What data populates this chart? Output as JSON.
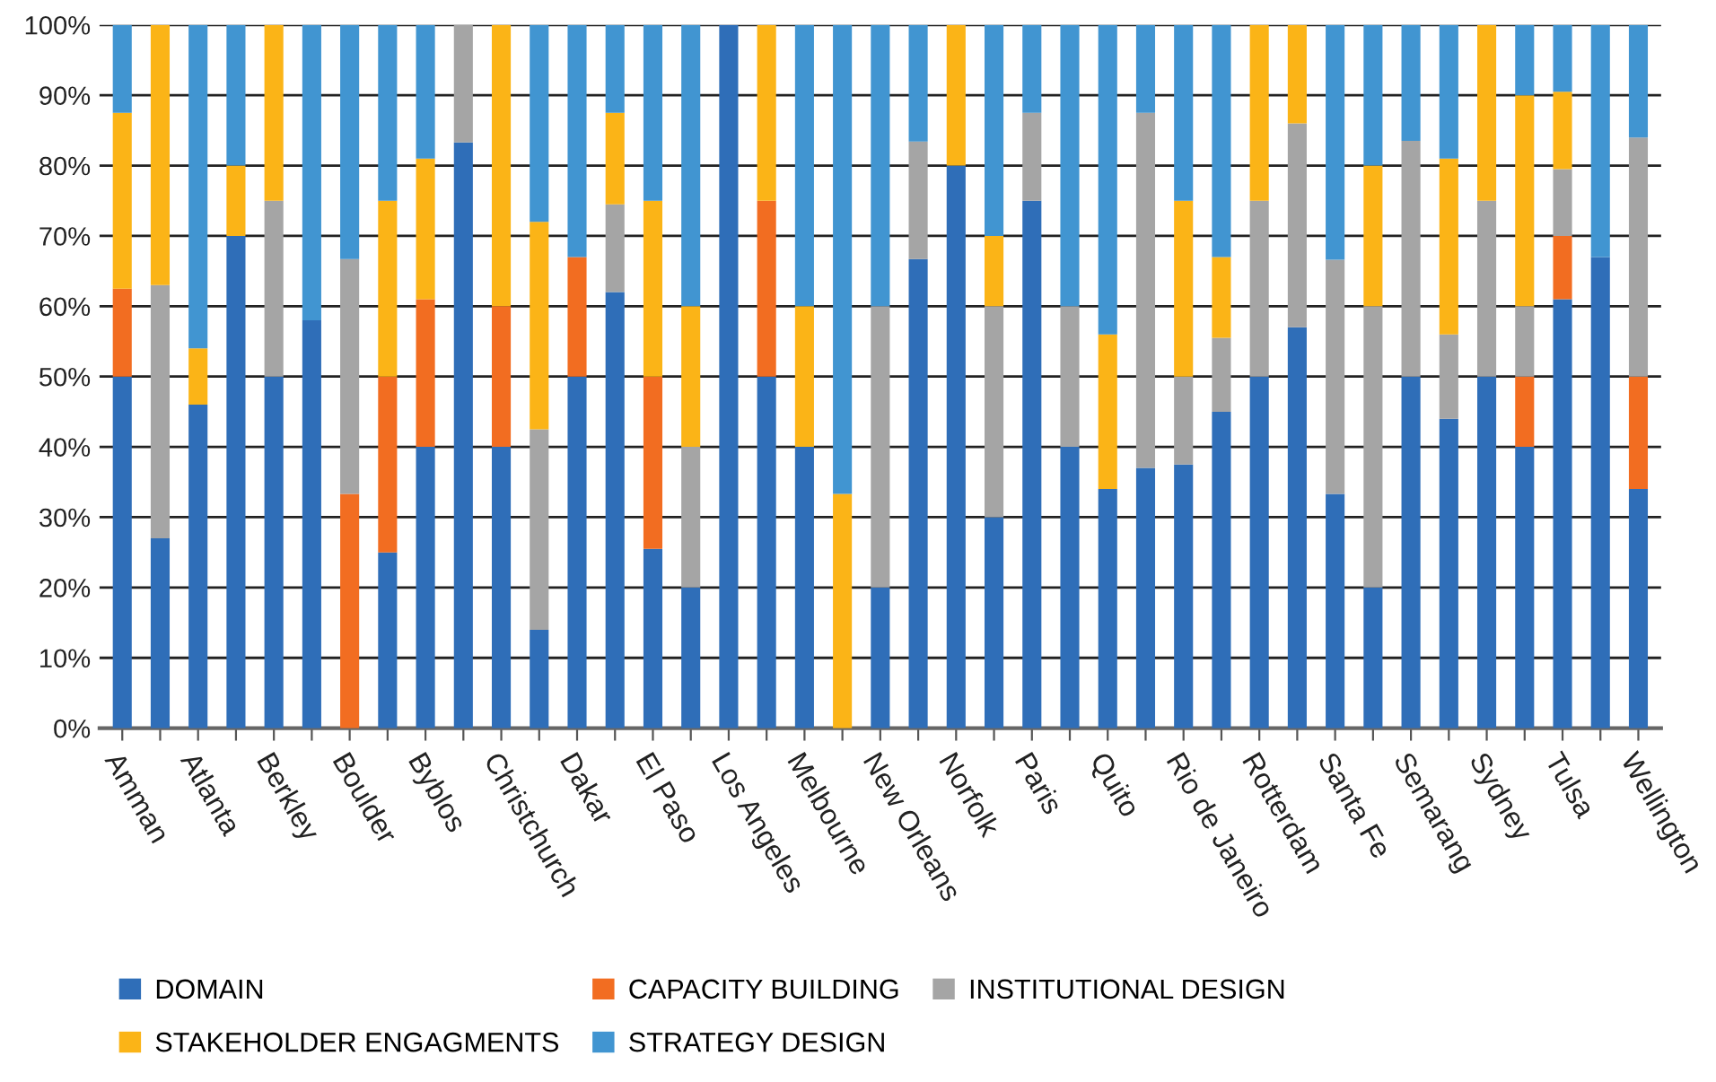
{
  "chart_data": {
    "type": "bar",
    "stacked": true,
    "categories": [
      "Amman",
      null,
      "Atlanta",
      null,
      "Berkley",
      null,
      "Boulder",
      null,
      "Byblos",
      null,
      "Christchurch",
      null,
      "Dakar",
      null,
      "El Paso",
      null,
      "Los Angeles",
      null,
      "Melbourne",
      null,
      "New Orleans",
      null,
      "Norfolk",
      null,
      "Paris",
      null,
      "Quito",
      null,
      "Rio de Janeiro",
      null,
      "Rotterdam",
      null,
      "Santa Fe",
      null,
      "Semarang",
      null,
      "Sydney",
      null,
      "Tulsa",
      null,
      "Wellington"
    ],
    "series": [
      {
        "name": "DOMAIN",
        "color": "#2f6eb8",
        "values": [
          50,
          27,
          46,
          70,
          50,
          58,
          0,
          25,
          40,
          83.3,
          40,
          14,
          50,
          62,
          25.5,
          20,
          100,
          50,
          40,
          0,
          20,
          66.7,
          80,
          30,
          75,
          40,
          34,
          37,
          37.5,
          45,
          50,
          57,
          33.3,
          20,
          50,
          44,
          50,
          40,
          61,
          67,
          34
        ]
      },
      {
        "name": "CAPACITY BUILDING",
        "color": "#f26d21",
        "values": [
          12.5,
          0,
          0,
          0,
          0,
          0,
          33.3,
          25,
          21,
          0,
          20,
          0,
          17,
          0,
          24.5,
          0,
          0,
          25,
          0,
          0,
          0,
          0,
          0,
          0,
          0,
          0,
          0,
          0,
          0,
          0,
          0,
          0,
          0,
          0,
          0,
          0,
          0,
          10,
          9,
          0,
          16
        ]
      },
      {
        "name": "INSTITUTIONAL DESIGN",
        "color": "#a5a5a5",
        "values": [
          0,
          36,
          0,
          0,
          25,
          0,
          33.4,
          0,
          0,
          16.7,
          0,
          28.5,
          0,
          12.5,
          0,
          20,
          0,
          0,
          0,
          0,
          40,
          16.7,
          0,
          30,
          12.5,
          20,
          0,
          50.5,
          12.5,
          10.5,
          25,
          29,
          33.3,
          40,
          33.5,
          12,
          25,
          10,
          9.5,
          0,
          34
        ]
      },
      {
        "name": "STAKEHOLDER ENGAGMENTS",
        "color": "#fbb417",
        "values": [
          25,
          37,
          8,
          10,
          25,
          0,
          0,
          25,
          20,
          0,
          40,
          29.5,
          0,
          13,
          25,
          20,
          0,
          25,
          20,
          33.3,
          0,
          0,
          20,
          10,
          0,
          0,
          22,
          0,
          25,
          11.5,
          25,
          14,
          0,
          20,
          0,
          25,
          25,
          30,
          11,
          0,
          0
        ]
      },
      {
        "name": "STRATEGY DESIGN",
        "color": "#4195d1",
        "values": [
          12.5,
          0,
          46,
          20,
          0,
          42,
          33.3,
          25,
          19,
          0,
          0,
          28,
          33,
          12.5,
          25,
          40,
          0,
          0,
          40,
          66.7,
          40,
          16.6,
          0,
          30,
          12.5,
          40,
          44,
          12.5,
          25,
          33,
          0,
          0,
          33.4,
          20,
          16.5,
          19,
          0,
          10,
          9.5,
          33,
          16
        ]
      }
    ],
    "ylim": [
      0,
      100
    ],
    "yticks": [
      {
        "value": 0,
        "label": "0%"
      },
      {
        "value": 10,
        "label": "10%"
      },
      {
        "value": 20,
        "label": "20%"
      },
      {
        "value": 30,
        "label": "30%"
      },
      {
        "value": 40,
        "label": "40%"
      },
      {
        "value": 50,
        "label": "50%"
      },
      {
        "value": 60,
        "label": "60%"
      },
      {
        "value": 70,
        "label": "70%"
      },
      {
        "value": 80,
        "label": "80%"
      },
      {
        "value": 90,
        "label": "90%"
      },
      {
        "value": 100,
        "label": "100%"
      }
    ],
    "grid": "y",
    "legend": "bottom"
  }
}
